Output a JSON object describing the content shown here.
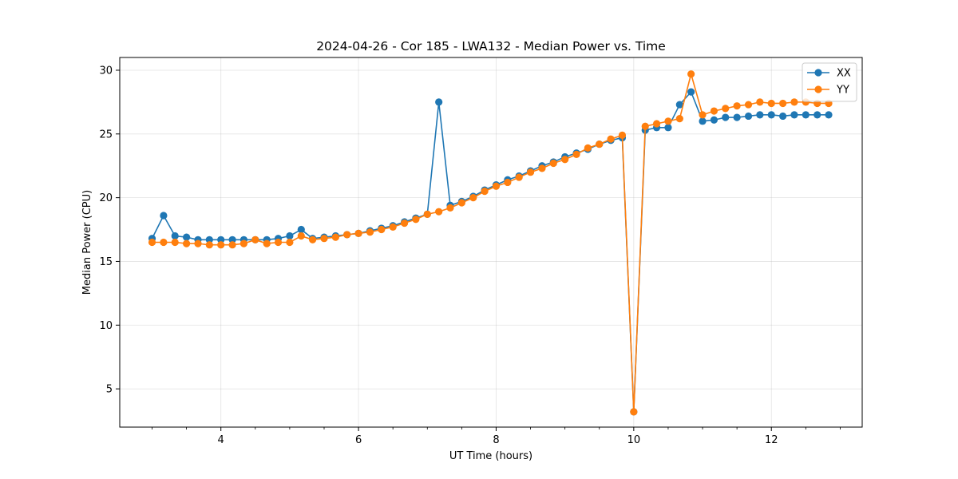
{
  "chart_data": {
    "type": "line",
    "title": "2024-04-26 - Cor 185 - LWA132 - Median Power vs. Time",
    "xlabel": "UT Time (hours)",
    "ylabel": "Median Power (CPU)",
    "xlim": [
      2.53,
      13.32
    ],
    "ylim": [
      2.0,
      31.0
    ],
    "xticks": [
      4,
      6,
      8,
      10,
      12
    ],
    "xtick_labels": [
      "4",
      "6",
      "8",
      "10",
      "12"
    ],
    "xminor_step": 0.5,
    "yticks": [
      5,
      10,
      15,
      20,
      25,
      30
    ],
    "ytick_labels": [
      "5",
      "10",
      "15",
      "20",
      "25",
      "30"
    ],
    "grid": true,
    "legend_position": "top-right",
    "x": [
      3.0,
      3.167,
      3.333,
      3.5,
      3.667,
      3.833,
      4.0,
      4.167,
      4.333,
      4.5,
      4.667,
      4.833,
      5.0,
      5.167,
      5.333,
      5.5,
      5.667,
      5.833,
      6.0,
      6.167,
      6.333,
      6.5,
      6.667,
      6.833,
      7.0,
      7.167,
      7.333,
      7.5,
      7.667,
      7.833,
      8.0,
      8.167,
      8.333,
      8.5,
      8.667,
      8.833,
      9.0,
      9.167,
      9.333,
      9.5,
      9.667,
      9.833,
      10.0,
      10.167,
      10.333,
      10.5,
      10.667,
      10.833,
      11.0,
      11.167,
      11.333,
      11.5,
      11.667,
      11.833,
      12.0,
      12.167,
      12.333,
      12.5,
      12.667,
      12.833
    ],
    "series": [
      {
        "name": "XX",
        "color": "#1f77b4",
        "values": [
          16.8,
          18.6,
          17.0,
          16.9,
          16.7,
          16.7,
          16.7,
          16.7,
          16.7,
          16.7,
          16.7,
          16.8,
          17.0,
          17.5,
          16.8,
          16.9,
          17.0,
          17.1,
          17.2,
          17.4,
          17.6,
          17.8,
          18.1,
          18.4,
          18.7,
          27.5,
          19.4,
          19.7,
          20.1,
          20.6,
          21.0,
          21.4,
          21.7,
          22.1,
          22.5,
          22.8,
          23.2,
          23.5,
          23.8,
          24.2,
          24.5,
          24.7,
          3.2,
          25.3,
          25.5,
          25.5,
          27.3,
          28.3,
          26.0,
          26.1,
          26.3,
          26.3,
          26.4,
          26.5,
          26.5,
          26.4,
          26.5,
          26.5,
          26.5,
          26.5
        ]
      },
      {
        "name": "YY",
        "color": "#ff7f0e",
        "values": [
          16.5,
          16.5,
          16.5,
          16.4,
          16.4,
          16.3,
          16.3,
          16.3,
          16.4,
          16.7,
          16.4,
          16.5,
          16.5,
          17.0,
          16.7,
          16.8,
          16.9,
          17.1,
          17.2,
          17.3,
          17.5,
          17.7,
          18.0,
          18.3,
          18.7,
          18.9,
          19.2,
          19.6,
          20.0,
          20.5,
          20.9,
          21.2,
          21.6,
          22.0,
          22.3,
          22.7,
          23.0,
          23.4,
          23.9,
          24.2,
          24.6,
          24.9,
          3.2,
          25.6,
          25.8,
          26.0,
          26.2,
          29.7,
          26.5,
          26.8,
          27.0,
          27.2,
          27.3,
          27.5,
          27.4,
          27.4,
          27.5,
          27.5,
          27.4,
          27.4
        ]
      }
    ]
  }
}
